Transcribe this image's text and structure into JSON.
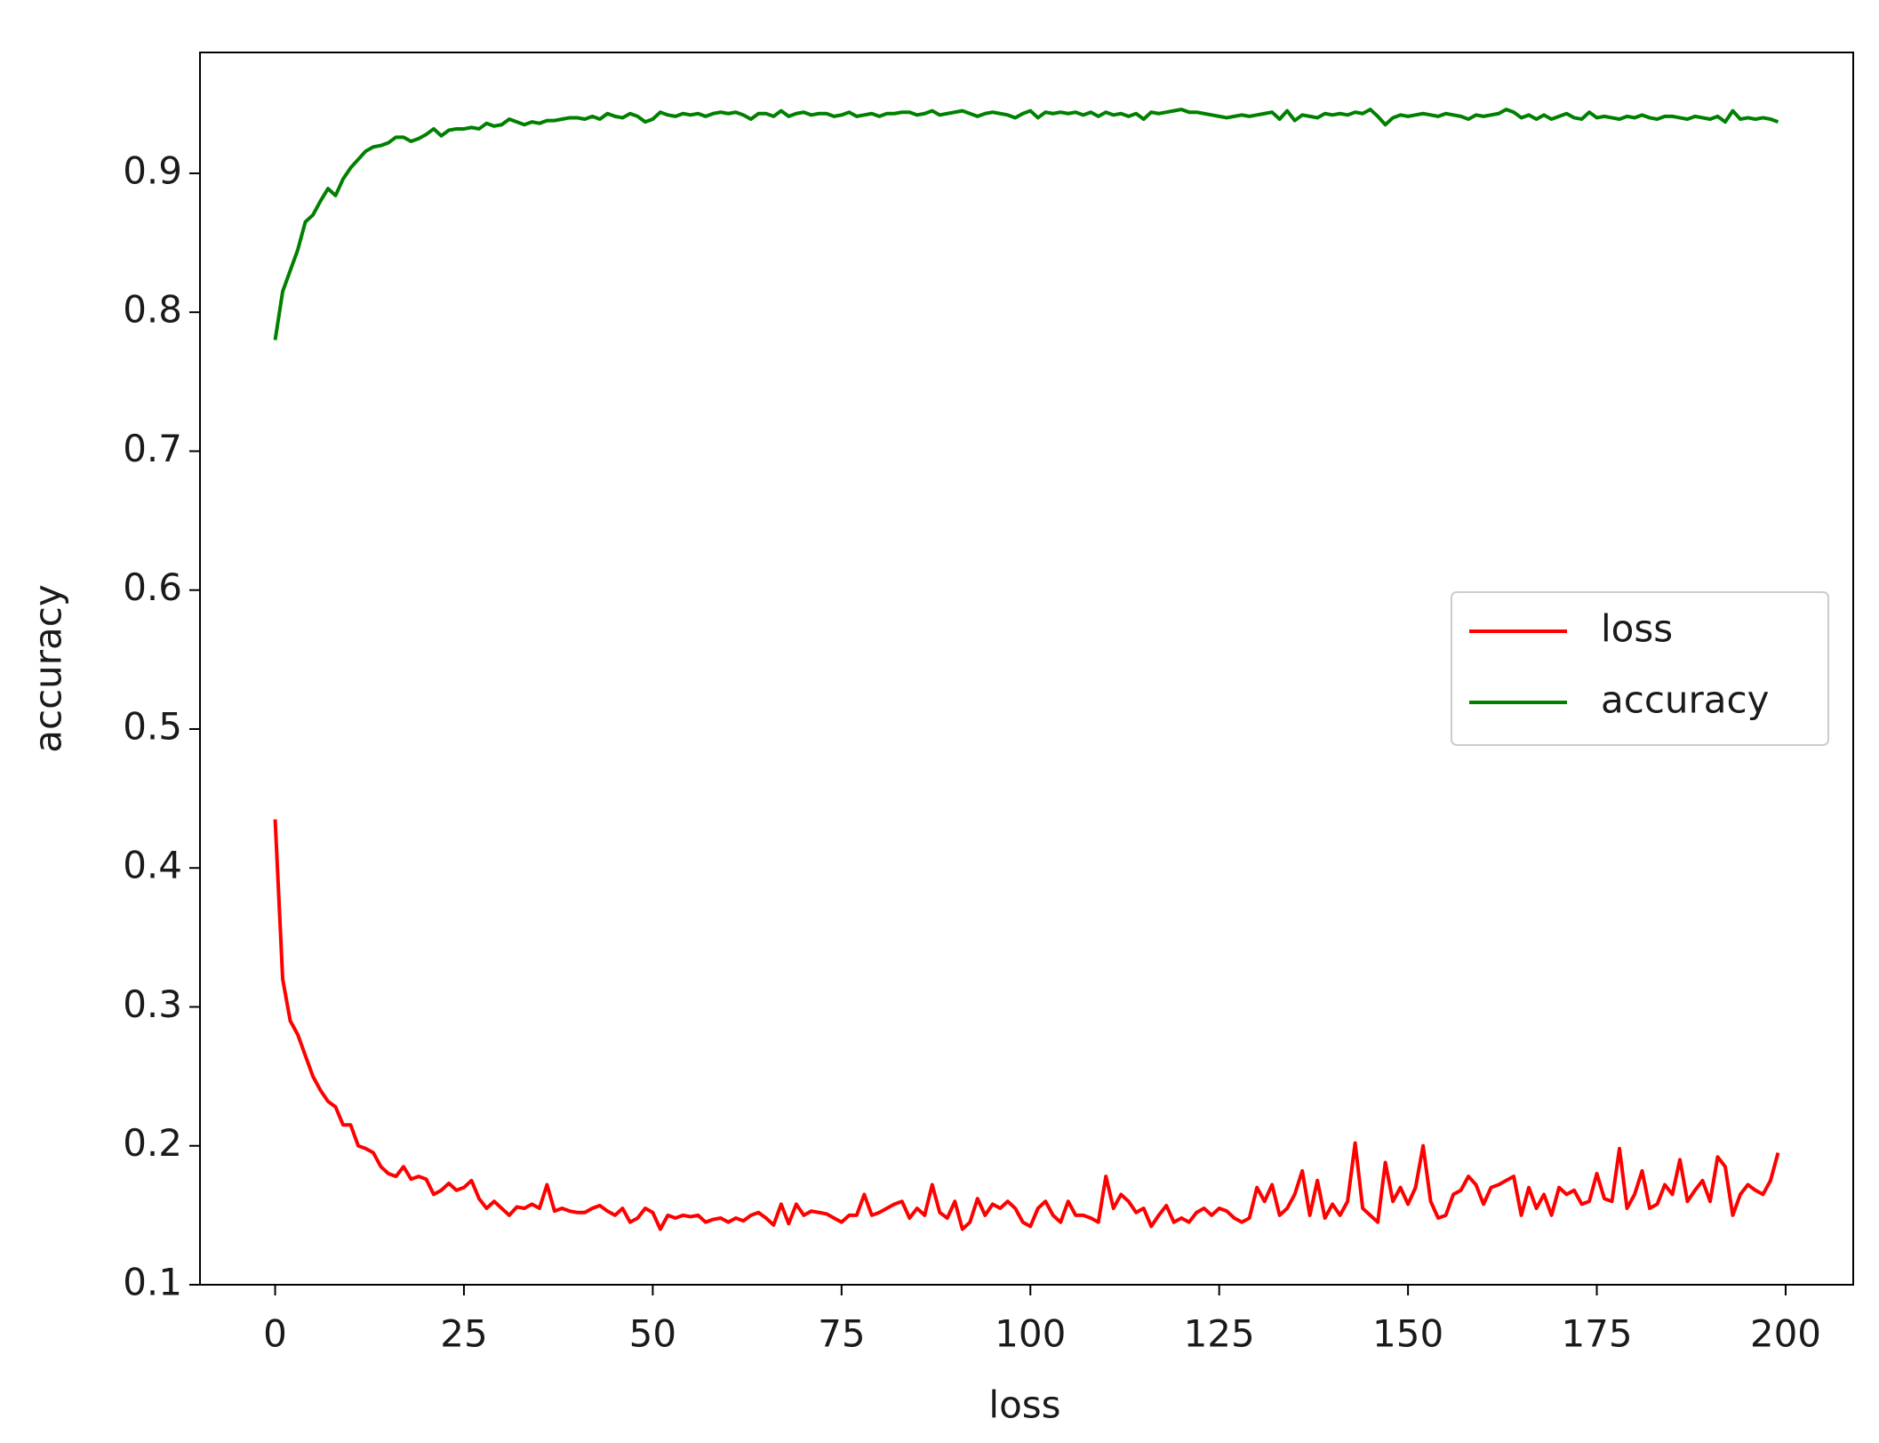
{
  "chart_data": {
    "type": "line",
    "xlabel": "loss",
    "ylabel": "accuracy",
    "x": [
      0,
      1,
      2,
      3,
      4,
      5,
      6,
      7,
      8,
      9,
      10,
      11,
      12,
      13,
      14,
      15,
      16,
      17,
      18,
      19,
      20,
      21,
      22,
      23,
      24,
      25,
      26,
      27,
      28,
      29,
      30,
      31,
      32,
      33,
      34,
      35,
      36,
      37,
      38,
      39,
      40,
      41,
      42,
      43,
      44,
      45,
      46,
      47,
      48,
      49,
      50,
      51,
      52,
      53,
      54,
      55,
      56,
      57,
      58,
      59,
      60,
      61,
      62,
      63,
      64,
      65,
      66,
      67,
      68,
      69,
      70,
      71,
      72,
      73,
      74,
      75,
      76,
      77,
      78,
      79,
      80,
      81,
      82,
      83,
      84,
      85,
      86,
      87,
      88,
      89,
      90,
      91,
      92,
      93,
      94,
      95,
      96,
      97,
      98,
      99,
      100,
      101,
      102,
      103,
      104,
      105,
      106,
      107,
      108,
      109,
      110,
      111,
      112,
      113,
      114,
      115,
      116,
      117,
      118,
      119,
      120,
      121,
      122,
      123,
      124,
      125,
      126,
      127,
      128,
      129,
      130,
      131,
      132,
      133,
      134,
      135,
      136,
      137,
      138,
      139,
      140,
      141,
      142,
      143,
      144,
      145,
      146,
      147,
      148,
      149,
      150,
      151,
      152,
      153,
      154,
      155,
      156,
      157,
      158,
      159,
      160,
      161,
      162,
      163,
      164,
      165,
      166,
      167,
      168,
      169,
      170,
      171,
      172,
      173,
      174,
      175,
      176,
      177,
      178,
      179,
      180,
      181,
      182,
      183,
      184,
      185,
      186,
      187,
      188,
      189,
      190,
      191,
      192,
      193,
      194,
      195,
      196,
      197,
      198,
      199
    ],
    "series": [
      {
        "name": "loss",
        "color": "#ff0000",
        "values": [
          0.435,
          0.32,
          0.29,
          0.28,
          0.265,
          0.25,
          0.24,
          0.232,
          0.228,
          0.215,
          0.215,
          0.2,
          0.198,
          0.195,
          0.185,
          0.18,
          0.178,
          0.185,
          0.176,
          0.178,
          0.176,
          0.165,
          0.168,
          0.173,
          0.168,
          0.17,
          0.175,
          0.162,
          0.155,
          0.16,
          0.155,
          0.15,
          0.156,
          0.155,
          0.158,
          0.155,
          0.172,
          0.153,
          0.155,
          0.153,
          0.152,
          0.152,
          0.155,
          0.157,
          0.153,
          0.15,
          0.155,
          0.145,
          0.148,
          0.155,
          0.152,
          0.14,
          0.15,
          0.148,
          0.15,
          0.149,
          0.15,
          0.145,
          0.147,
          0.148,
          0.145,
          0.148,
          0.146,
          0.15,
          0.152,
          0.148,
          0.143,
          0.158,
          0.144,
          0.158,
          0.15,
          0.153,
          0.152,
          0.151,
          0.148,
          0.145,
          0.15,
          0.15,
          0.165,
          0.15,
          0.152,
          0.155,
          0.158,
          0.16,
          0.148,
          0.155,
          0.15,
          0.172,
          0.152,
          0.148,
          0.16,
          0.14,
          0.145,
          0.162,
          0.15,
          0.158,
          0.155,
          0.16,
          0.155,
          0.145,
          0.142,
          0.155,
          0.16,
          0.15,
          0.145,
          0.16,
          0.15,
          0.15,
          0.148,
          0.145,
          0.178,
          0.155,
          0.165,
          0.16,
          0.152,
          0.155,
          0.142,
          0.15,
          0.157,
          0.145,
          0.148,
          0.145,
          0.152,
          0.155,
          0.15,
          0.155,
          0.153,
          0.148,
          0.145,
          0.148,
          0.17,
          0.16,
          0.172,
          0.15,
          0.155,
          0.165,
          0.182,
          0.15,
          0.175,
          0.148,
          0.158,
          0.15,
          0.16,
          0.202,
          0.155,
          0.15,
          0.145,
          0.188,
          0.16,
          0.17,
          0.158,
          0.17,
          0.2,
          0.16,
          0.148,
          0.15,
          0.165,
          0.168,
          0.178,
          0.172,
          0.158,
          0.17,
          0.172,
          0.175,
          0.178,
          0.15,
          0.17,
          0.155,
          0.165,
          0.15,
          0.17,
          0.165,
          0.168,
          0.158,
          0.16,
          0.18,
          0.162,
          0.16,
          0.198,
          0.155,
          0.165,
          0.182,
          0.155,
          0.158,
          0.172,
          0.165,
          0.19,
          0.16,
          0.168,
          0.175,
          0.16,
          0.192,
          0.185,
          0.15,
          0.165,
          0.172,
          0.168,
          0.165,
          0.175,
          0.195
        ]
      },
      {
        "name": "accuracy",
        "color": "#008000",
        "values": [
          0.78,
          0.815,
          0.83,
          0.845,
          0.865,
          0.87,
          0.88,
          0.889,
          0.884,
          0.896,
          0.904,
          0.91,
          0.916,
          0.919,
          0.92,
          0.922,
          0.926,
          0.926,
          0.923,
          0.925,
          0.928,
          0.932,
          0.927,
          0.931,
          0.932,
          0.932,
          0.933,
          0.932,
          0.936,
          0.934,
          0.935,
          0.939,
          0.937,
          0.935,
          0.937,
          0.936,
          0.938,
          0.938,
          0.939,
          0.94,
          0.94,
          0.939,
          0.941,
          0.939,
          0.943,
          0.941,
          0.94,
          0.943,
          0.941,
          0.937,
          0.939,
          0.944,
          0.942,
          0.941,
          0.943,
          0.942,
          0.943,
          0.941,
          0.943,
          0.944,
          0.943,
          0.944,
          0.942,
          0.939,
          0.943,
          0.943,
          0.941,
          0.945,
          0.941,
          0.943,
          0.944,
          0.942,
          0.943,
          0.943,
          0.941,
          0.942,
          0.944,
          0.941,
          0.942,
          0.943,
          0.941,
          0.943,
          0.943,
          0.944,
          0.944,
          0.942,
          0.943,
          0.945,
          0.942,
          0.943,
          0.944,
          0.945,
          0.943,
          0.941,
          0.943,
          0.944,
          0.943,
          0.942,
          0.94,
          0.943,
          0.945,
          0.94,
          0.944,
          0.943,
          0.944,
          0.943,
          0.944,
          0.942,
          0.944,
          0.941,
          0.944,
          0.942,
          0.943,
          0.941,
          0.943,
          0.939,
          0.944,
          0.943,
          0.944,
          0.945,
          0.946,
          0.944,
          0.944,
          0.943,
          0.942,
          0.941,
          0.94,
          0.941,
          0.942,
          0.941,
          0.942,
          0.943,
          0.944,
          0.939,
          0.945,
          0.938,
          0.942,
          0.941,
          0.94,
          0.943,
          0.942,
          0.943,
          0.942,
          0.944,
          0.943,
          0.946,
          0.941,
          0.935,
          0.94,
          0.942,
          0.941,
          0.942,
          0.943,
          0.942,
          0.941,
          0.943,
          0.942,
          0.941,
          0.939,
          0.942,
          0.941,
          0.942,
          0.943,
          0.946,
          0.944,
          0.94,
          0.942,
          0.939,
          0.942,
          0.939,
          0.941,
          0.943,
          0.94,
          0.939,
          0.944,
          0.94,
          0.941,
          0.94,
          0.939,
          0.941,
          0.94,
          0.942,
          0.94,
          0.939,
          0.941,
          0.941,
          0.94,
          0.939,
          0.941,
          0.94,
          0.939,
          0.941,
          0.937,
          0.945,
          0.939,
          0.94,
          0.939,
          0.94,
          0.939,
          0.937
        ]
      }
    ],
    "xlim": [
      -9.95,
      208.95
    ],
    "xticks": [
      0,
      25,
      50,
      75,
      100,
      125,
      150,
      175,
      200
    ],
    "ylim": [
      0.1,
      0.987
    ],
    "yticks": [
      0.1,
      0.2,
      0.3,
      0.4,
      0.5,
      0.6,
      0.7,
      0.8,
      0.9
    ],
    "grid": false,
    "legend": "center right"
  }
}
